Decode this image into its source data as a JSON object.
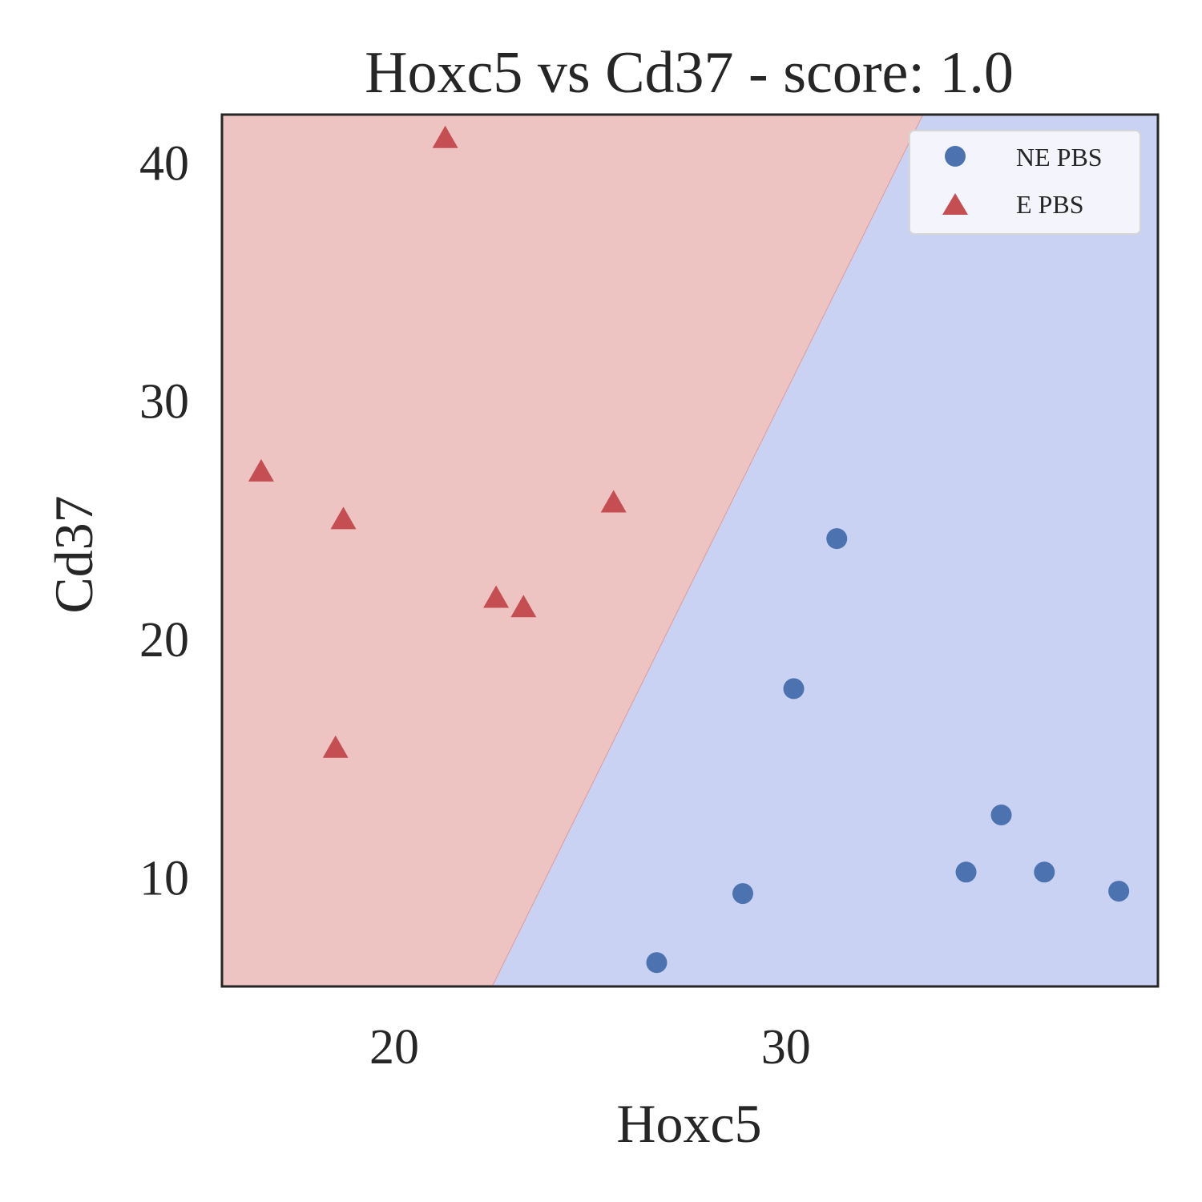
{
  "chart_data": {
    "type": "scatter",
    "title": "Hoxc5 vs Cd37 - score: 1.0",
    "xlabel": "Hoxc5",
    "ylabel": "Cd37",
    "xlim": [
      15.6,
      39.5
    ],
    "ylim": [
      5.4,
      42.0
    ],
    "xticks": [
      20,
      30
    ],
    "yticks": [
      10,
      20,
      30,
      40
    ],
    "grid": false,
    "legend_position": "top-right",
    "colors": {
      "region_e": "#eec4c3",
      "region_ne": "#c9d2f2",
      "ne_marker": "#4c72b0",
      "e_marker": "#c44e52",
      "frame": "#262626"
    },
    "decision_boundary": [
      {
        "x": 22.5,
        "y": 5.4
      },
      {
        "x": 33.5,
        "y": 42.0
      }
    ],
    "series": [
      {
        "name": "NE PBS",
        "marker": "circle",
        "points": [
          {
            "x": 26.7,
            "y": 6.4
          },
          {
            "x": 28.9,
            "y": 9.3
          },
          {
            "x": 30.2,
            "y": 17.9
          },
          {
            "x": 31.3,
            "y": 24.2
          },
          {
            "x": 34.6,
            "y": 10.2
          },
          {
            "x": 35.5,
            "y": 12.6
          },
          {
            "x": 36.6,
            "y": 10.2
          },
          {
            "x": 38.5,
            "y": 9.4
          }
        ]
      },
      {
        "name": "E PBS",
        "marker": "triangle",
        "points": [
          {
            "x": 16.6,
            "y": 27.0
          },
          {
            "x": 18.7,
            "y": 25.0
          },
          {
            "x": 18.5,
            "y": 15.4
          },
          {
            "x": 21.3,
            "y": 41.0
          },
          {
            "x": 22.6,
            "y": 21.7
          },
          {
            "x": 23.3,
            "y": 21.3
          },
          {
            "x": 25.6,
            "y": 25.7
          }
        ]
      }
    ]
  }
}
